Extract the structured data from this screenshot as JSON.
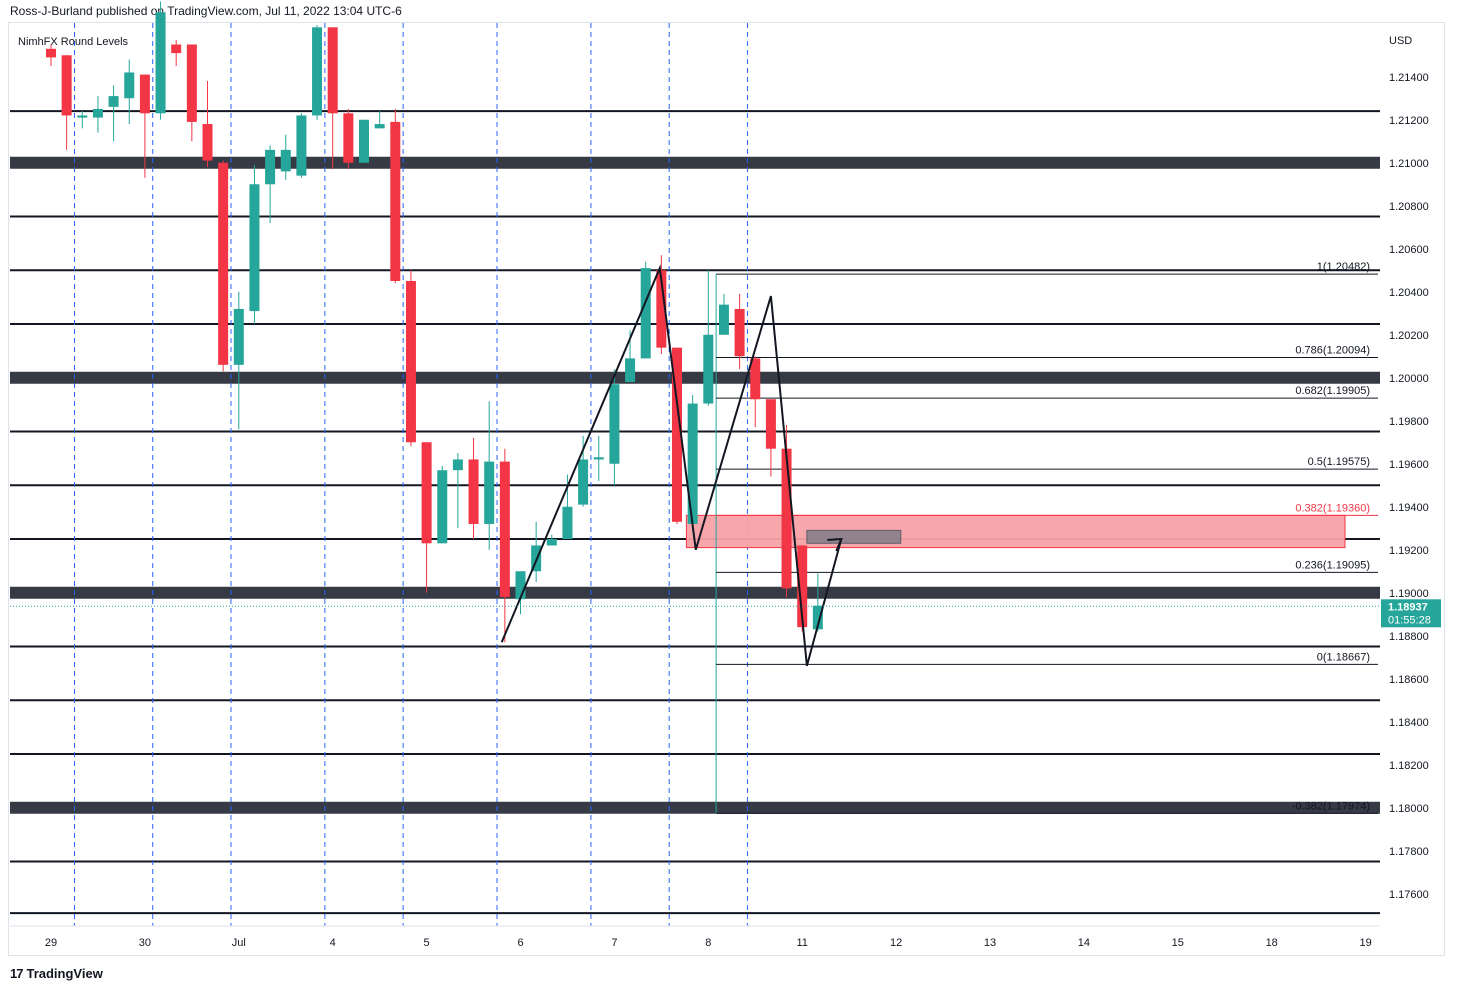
{
  "header": {
    "publisher": "Ross-J-Burland published on TradingView.com, Jul 11, 2022 13:04 UTC-6"
  },
  "indicator": {
    "label": "NimhFX Round Levels"
  },
  "footer": {
    "brand": "TradingView",
    "logo_icon": "tradingview-logo-icon"
  },
  "colors": {
    "up": "#26a69a",
    "down": "#f23645",
    "level": "#131722",
    "major_level": "#363a45",
    "zone": "#f7a1a8",
    "zone_border": "#f23645",
    "small_box": "#787b86",
    "price_badge": "#26a69a",
    "fib_line": "#131722",
    "drawing": "#131722",
    "grid_vline": "#2962ff"
  },
  "chart_data": {
    "type": "candlestick",
    "symbol_currency": "USD",
    "last_price": "1.18937",
    "countdown": "01:55:28",
    "y_ticks": [
      "1.21400",
      "1.21200",
      "1.21000",
      "1.20800",
      "1.20600",
      "1.20400",
      "1.20200",
      "1.20000",
      "1.19800",
      "1.19600",
      "1.19400",
      "1.19200",
      "1.19000",
      "1.18800",
      "1.18600",
      "1.18400",
      "1.18200",
      "1.18000",
      "1.17800",
      "1.17600"
    ],
    "x_ticks": [
      "29",
      "30",
      "Jul",
      "4",
      "5",
      "6",
      "7",
      "8",
      "11",
      "12",
      "13",
      "14",
      "15",
      "18",
      "19"
    ],
    "ylim": [
      1.1745,
      1.2165
    ],
    "candles": [
      [
        1.2153,
        1.2149,
        1.2155,
        1.2145
      ],
      [
        1.215,
        1.2122,
        1.215,
        1.2106
      ],
      [
        1.2121,
        1.2122,
        1.2124,
        1.2116
      ],
      [
        1.2121,
        1.2125,
        1.2131,
        1.2114
      ],
      [
        1.2126,
        1.2131,
        1.2136,
        1.211
      ],
      [
        1.213,
        1.2142,
        1.2148,
        1.2118
      ],
      [
        1.2141,
        1.2123,
        1.2141,
        1.2093
      ],
      [
        1.2123,
        1.217,
        1.2175,
        1.212
      ],
      [
        1.2155,
        1.2151,
        1.2157,
        1.2145
      ],
      [
        1.2155,
        1.2119,
        1.2155,
        1.211
      ],
      [
        1.2118,
        1.2101,
        1.2138,
        1.2098
      ],
      [
        1.21,
        1.2006,
        1.2101,
        1.2003
      ],
      [
        1.2006,
        1.2032,
        1.204,
        1.1976
      ],
      [
        1.2031,
        1.209,
        1.2099,
        1.2025
      ],
      [
        1.209,
        1.2106,
        1.2108,
        1.2072
      ],
      [
        1.2096,
        1.2106,
        1.2113,
        1.2092
      ],
      [
        1.2094,
        1.2122,
        1.2123,
        1.2093
      ],
      [
        1.2122,
        1.2163,
        1.2164,
        1.212
      ],
      [
        1.2163,
        1.2123,
        1.2163,
        1.2097
      ],
      [
        1.2123,
        1.21,
        1.2125,
        1.2097
      ],
      [
        1.21,
        1.212,
        1.212,
        1.21
      ],
      [
        1.2116,
        1.2118,
        1.2124,
        1.2116
      ],
      [
        1.2119,
        1.2045,
        1.2125,
        1.2044
      ],
      [
        1.2045,
        1.197,
        1.205,
        1.1968
      ],
      [
        1.197,
        1.1923,
        1.197,
        1.19
      ],
      [
        1.1923,
        1.1957,
        1.1959,
        1.1923
      ],
      [
        1.1957,
        1.1962,
        1.1965,
        1.193
      ],
      [
        1.1962,
        1.1932,
        1.1972,
        1.1925
      ],
      [
        1.1932,
        1.1961,
        1.1989,
        1.192
      ],
      [
        1.1961,
        1.1898,
        1.1967,
        1.1877
      ],
      [
        1.1897,
        1.191,
        1.191,
        1.189
      ],
      [
        1.191,
        1.1922,
        1.1933,
        1.1905
      ],
      [
        1.1922,
        1.1925,
        1.1927,
        1.1922
      ],
      [
        1.1925,
        1.194,
        1.1955,
        1.1928
      ],
      [
        1.1941,
        1.1962,
        1.1973,
        1.194
      ],
      [
        1.1962,
        1.1963,
        1.1973,
        1.1952
      ],
      [
        1.196,
        1.1997,
        1.2004,
        1.195
      ],
      [
        1.1998,
        1.2009,
        1.2022,
        1.1998
      ],
      [
        1.2009,
        1.2051,
        1.2054,
        1.2009
      ],
      [
        1.205,
        1.2014,
        1.2057,
        1.2011
      ],
      [
        1.2014,
        1.1933,
        1.2014,
        1.1932
      ],
      [
        1.1932,
        1.1988,
        1.1992,
        1.1928
      ],
      [
        1.1988,
        1.202,
        1.205,
        1.1987
      ],
      [
        1.202,
        1.2034,
        1.2039,
        1.202
      ],
      [
        1.2032,
        1.201,
        1.2039,
        1.2004
      ],
      [
        1.2009,
        1.199,
        1.201,
        1.1977
      ],
      [
        1.199,
        1.1967,
        1.199,
        1.1954
      ],
      [
        1.1967,
        1.1902,
        1.1978,
        1.1898
      ],
      [
        1.1922,
        1.1884,
        1.1922,
        1.1882
      ],
      [
        1.1883,
        1.1894,
        1.1909,
        1.1882
      ]
    ],
    "round_levels": [
      {
        "price": 1.2124,
        "major": false
      },
      {
        "price": 1.21,
        "major": true
      },
      {
        "price": 1.2075,
        "major": false
      },
      {
        "price": 1.205,
        "major": false
      },
      {
        "price": 1.2025,
        "major": false
      },
      {
        "price": 1.2,
        "major": true
      },
      {
        "price": 1.1975,
        "major": false
      },
      {
        "price": 1.195,
        "major": false
      },
      {
        "price": 1.1925,
        "major": false
      },
      {
        "price": 1.19,
        "major": true
      },
      {
        "price": 1.1875,
        "major": false
      },
      {
        "price": 1.185,
        "major": false
      },
      {
        "price": 1.1825,
        "major": false
      },
      {
        "price": 1.18,
        "major": true
      },
      {
        "price": 1.1775,
        "major": false
      },
      {
        "price": 1.1751,
        "major": false
      }
    ],
    "fib_levels": [
      {
        "label": "1(1.20482)",
        "price": 1.20482,
        "color": "#131722"
      },
      {
        "label": "0.786(1.20094)",
        "price": 1.20094,
        "color": "#131722"
      },
      {
        "label": "0.682(1.19905)",
        "price": 1.19905,
        "color": "#131722"
      },
      {
        "label": "0.5(1.19575)",
        "price": 1.19575,
        "color": "#131722"
      },
      {
        "label": "0.382(1.19360)",
        "price": 1.1936,
        "color": "#f23645"
      },
      {
        "label": "0.236(1.19095)",
        "price": 1.19095,
        "color": "#131722"
      },
      {
        "label": "0(1.18667)",
        "price": 1.18667,
        "color": "#131722"
      },
      {
        "label": "-0.382(1.17974)",
        "price": 1.17974,
        "color": "#131722"
      }
    ],
    "resistance_zone": {
      "top": 1.1936,
      "bottom": 1.1921
    },
    "target_box": {
      "top": 1.1929,
      "bottom": 1.1923
    },
    "day_separators": [
      1.5,
      6.5,
      11.5,
      17.5,
      22.5,
      28.5,
      34.5,
      39.5,
      44.5
    ],
    "zigzag_1": [
      [
        28.8,
        1.1877
      ],
      [
        38.9,
        1.2051
      ],
      [
        41.2,
        1.192
      ],
      [
        46.0,
        1.2038
      ],
      [
        48.3,
        1.1866
      ],
      [
        50.5,
        1.1925
      ]
    ],
    "arrow_head": [
      50.5,
      1.1925
    ]
  }
}
